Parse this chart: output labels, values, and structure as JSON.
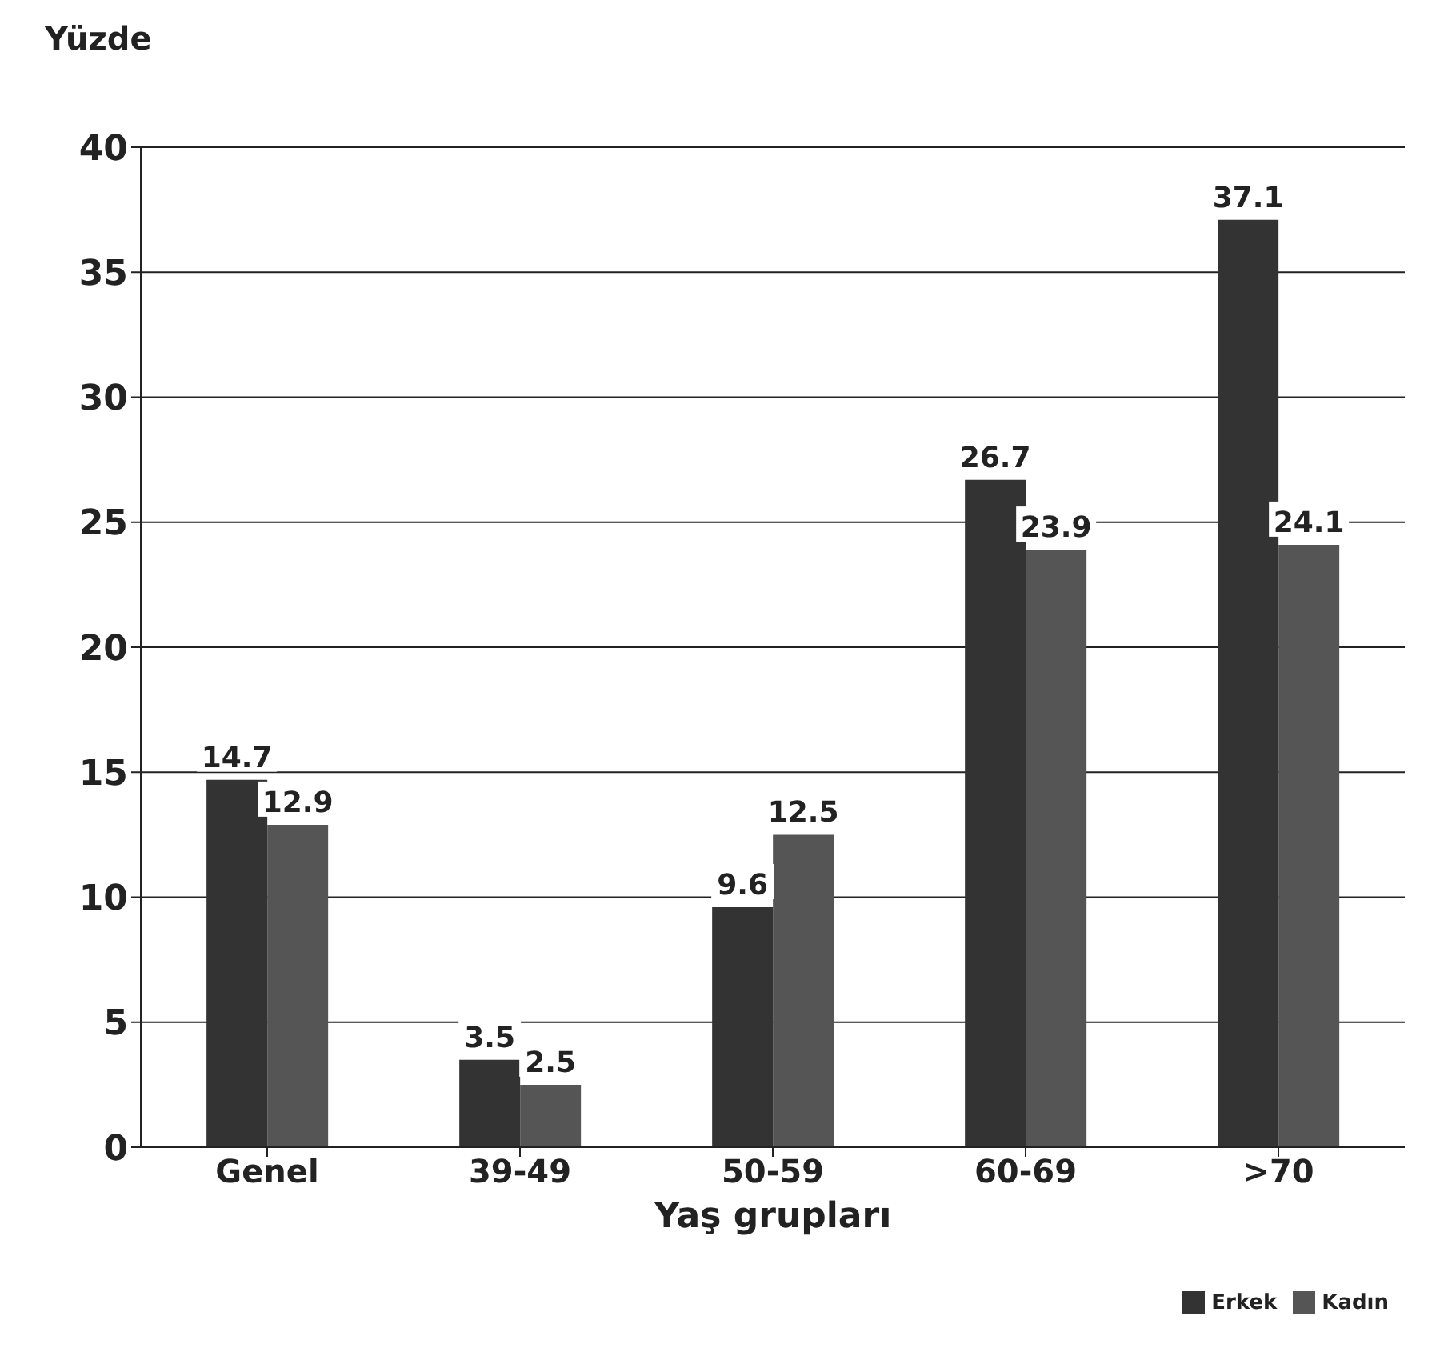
{
  "chart_data": {
    "type": "bar",
    "ylabel": "Yüzde",
    "xlabel": "Yaş grupları",
    "categories": [
      "Genel",
      "39-49",
      "50-59",
      "60-69",
      ">70"
    ],
    "series": [
      {
        "name": "Erkek",
        "color": "#333333",
        "values": [
          14.7,
          3.5,
          9.6,
          26.7,
          37.1
        ]
      },
      {
        "name": "Kadın",
        "color": "#555555",
        "values": [
          12.9,
          2.5,
          12.5,
          23.9,
          24.1
        ]
      }
    ],
    "ylim": [
      0,
      40
    ],
    "yticks": [
      0,
      5,
      10,
      15,
      20,
      25,
      30,
      35,
      40
    ],
    "grid": "y",
    "legend": "bottom right",
    "data_labels": true
  }
}
